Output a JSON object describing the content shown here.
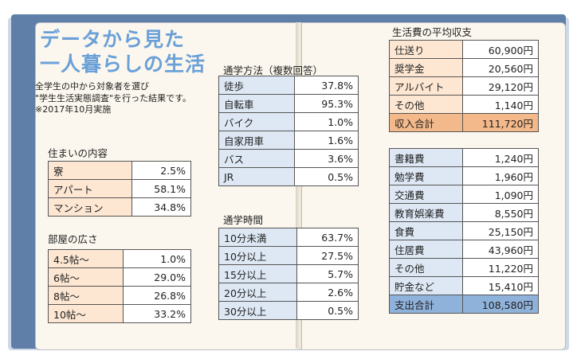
{
  "title": [
    "データから見た",
    "一人暮らしの生活"
  ],
  "description": [
    "全学生の中から対象者を選び",
    "\"学生生活実態調査\"を行った結果です。",
    "※2017年10月実施"
  ],
  "housing": {
    "heading": "住まいの内容",
    "rows": [
      {
        "label": "寮",
        "value": "2.5%"
      },
      {
        "label": "アパート",
        "value": "58.1%"
      },
      {
        "label": "マンション",
        "value": "34.8%"
      }
    ]
  },
  "room_size": {
    "heading": "部屋の広さ",
    "rows": [
      {
        "label": "4.5帖〜",
        "value": "1.0%"
      },
      {
        "label": "6帖〜",
        "value": "29.0%"
      },
      {
        "label": "8帖〜",
        "value": "26.8%"
      },
      {
        "label": "10帖〜",
        "value": "33.2%"
      }
    ]
  },
  "commute_method": {
    "heading": "通学方法（複数回答）",
    "rows": [
      {
        "label": "徒歩",
        "value": "37.8%"
      },
      {
        "label": "自転車",
        "value": "95.3%"
      },
      {
        "label": "バイク",
        "value": "1.0%"
      },
      {
        "label": "自家用車",
        "value": "1.6%"
      },
      {
        "label": "バス",
        "value": "3.6%"
      },
      {
        "label": "JR",
        "value": "0.5%"
      }
    ]
  },
  "commute_time": {
    "heading": "通学時間",
    "rows": [
      {
        "label": "10分未満",
        "value": "63.7%"
      },
      {
        "label": "10分以上",
        "value": "27.5%"
      },
      {
        "label": "15分以上",
        "value": "5.7%"
      },
      {
        "label": "20分以上",
        "value": "2.6%"
      },
      {
        "label": "30分以上",
        "value": "0.5%"
      }
    ]
  },
  "budget": {
    "heading": "生活費の平均収支",
    "income": [
      {
        "label": "仕送り",
        "value": "60,900円"
      },
      {
        "label": "奨学金",
        "value": "20,560円"
      },
      {
        "label": "アルバイト",
        "value": "29,120円"
      },
      {
        "label": "その他",
        "value": "1,140円"
      }
    ],
    "income_total": {
      "label": "収入合計",
      "value": "111,720円"
    },
    "expenses": [
      {
        "label": "書籍費",
        "value": "1,240円"
      },
      {
        "label": "勉学費",
        "value": "1,960円"
      },
      {
        "label": "交通費",
        "value": "1,090円"
      },
      {
        "label": "教育娯楽費",
        "value": "8,550円"
      },
      {
        "label": "食費",
        "value": "25,150円"
      },
      {
        "label": "住居費",
        "value": "43,960円"
      },
      {
        "label": "その他",
        "value": "11,220円"
      },
      {
        "label": "貯金など",
        "value": "15,410円"
      }
    ],
    "expense_total": {
      "label": "支出合計",
      "value": "108,580円"
    }
  }
}
